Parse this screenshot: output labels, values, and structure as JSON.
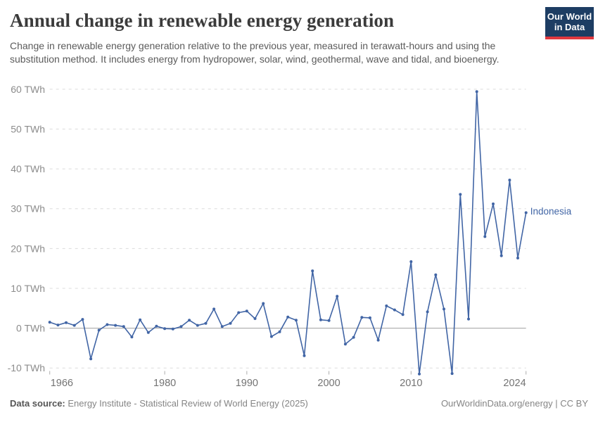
{
  "header": {
    "title": "Annual change in renewable energy generation",
    "subtitle": "Change in renewable energy generation relative to the previous year, measured in terawatt-hours and using the substitution method. It includes energy from hydropower, solar, wind, geothermal, wave and tidal, and bioenergy.",
    "logo": {
      "line1": "Our World",
      "line2": "in Data",
      "bg": "#1d3d63",
      "accent": "#e0383f"
    }
  },
  "chart_data": {
    "type": "line",
    "title": "Annual change in renewable energy generation",
    "unit": "TWh",
    "xlim": [
      1966,
      2024
    ],
    "ylim": [
      -10,
      60
    ],
    "grid": "horizontal-dashed",
    "zero_line": true,
    "legend_position": "end-of-line-label",
    "yticks": [
      {
        "value": -10,
        "label": "-10 TWh"
      },
      {
        "value": 0,
        "label": "0 TWh"
      },
      {
        "value": 10,
        "label": "10 TWh"
      },
      {
        "value": 20,
        "label": "20 TWh"
      },
      {
        "value": 30,
        "label": "30 TWh"
      },
      {
        "value": 40,
        "label": "40 TWh"
      },
      {
        "value": 50,
        "label": "50 TWh"
      },
      {
        "value": 60,
        "label": "60 TWh"
      }
    ],
    "xticks": [
      {
        "value": 1966,
        "label": "1966"
      },
      {
        "value": 1980,
        "label": "1980"
      },
      {
        "value": 1990,
        "label": "1990"
      },
      {
        "value": 2000,
        "label": "2000"
      },
      {
        "value": 2010,
        "label": "2010"
      },
      {
        "value": 2024,
        "label": "2024"
      }
    ],
    "series": [
      {
        "name": "Indonesia",
        "color": "#4165a5",
        "x": [
          1966,
          1967,
          1968,
          1969,
          1970,
          1971,
          1972,
          1973,
          1974,
          1975,
          1976,
          1977,
          1978,
          1979,
          1980,
          1981,
          1982,
          1983,
          1984,
          1985,
          1986,
          1987,
          1988,
          1989,
          1990,
          1991,
          1992,
          1993,
          1994,
          1995,
          1996,
          1997,
          1998,
          1999,
          2000,
          2001,
          2002,
          2003,
          2004,
          2005,
          2006,
          2007,
          2008,
          2009,
          2010,
          2011,
          2012,
          2013,
          2014,
          2015,
          2016,
          2017,
          2018,
          2019,
          2020,
          2021,
          2022,
          2023,
          2024
        ],
        "values": [
          1.5,
          0.8,
          1.4,
          0.7,
          2.2,
          -7.7,
          -0.5,
          0.9,
          0.7,
          0.4,
          -2.2,
          2.1,
          -1.1,
          0.5,
          -0.1,
          -0.2,
          0.4,
          2.0,
          0.7,
          1.2,
          4.8,
          0.4,
          1.2,
          3.9,
          4.3,
          2.4,
          6.2,
          -2.1,
          -0.9,
          2.8,
          2.0,
          -6.9,
          14.4,
          2.1,
          1.9,
          8.0,
          -4.0,
          -2.3,
          2.7,
          2.6,
          -3.0,
          5.6,
          4.6,
          3.4,
          16.7,
          -11.5,
          4.1,
          13.4,
          4.8,
          -11.4,
          33.6,
          2.3,
          59.4,
          23.0,
          31.2,
          18.2,
          37.2,
          17.6,
          29.0
        ]
      }
    ]
  },
  "footer": {
    "source_label": "Data source:",
    "source_text": " Energy Institute - Statistical Review of World Energy (2025)",
    "credit": "OurWorldinData.org/energy | CC BY"
  }
}
